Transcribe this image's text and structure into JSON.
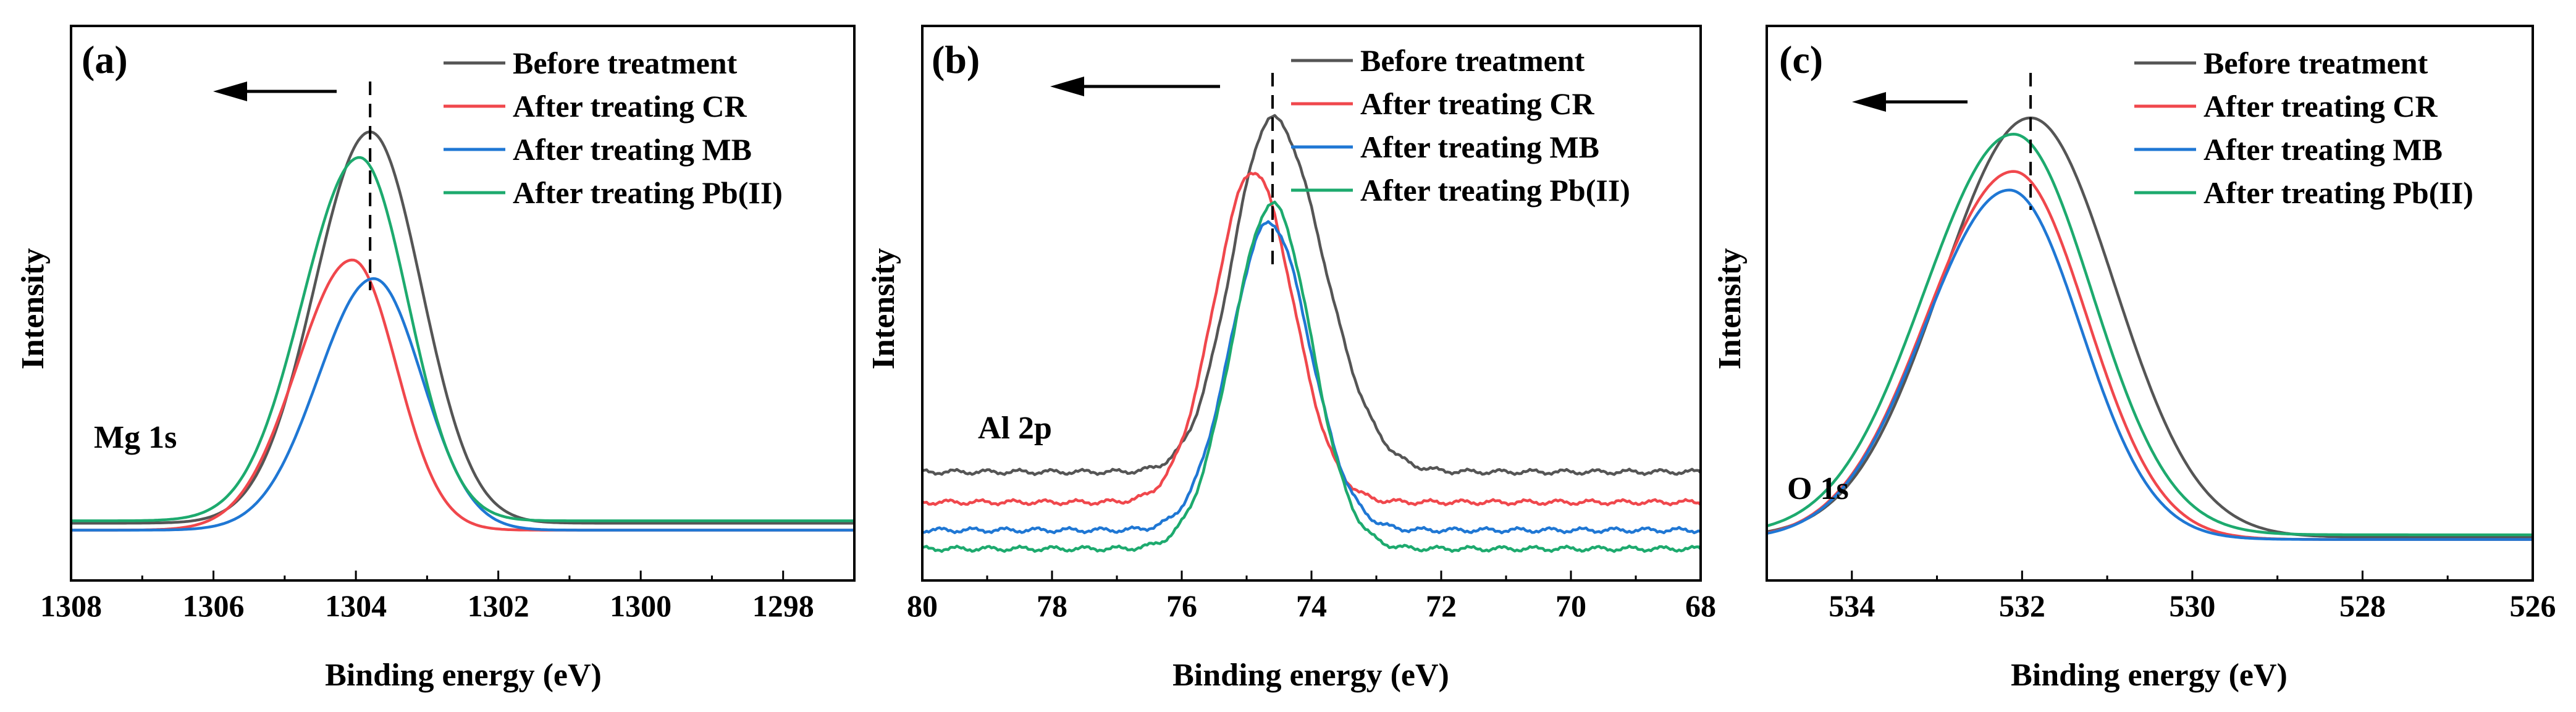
{
  "chart_data": [
    {
      "type": "line",
      "panel_label": "(a)",
      "annotation": "Mg 1s",
      "xlabel": "Binding energy (eV)",
      "ylabel": "Intensity",
      "xlim": [
        1308,
        1297
      ],
      "ylim": [
        0,
        1
      ],
      "x_ticks": [
        1308,
        1306,
        1304,
        1302,
        1300,
        1298
      ],
      "x_tick_labels": [
        "1308",
        "1306",
        "1304",
        "1302",
        "1300",
        "1298"
      ],
      "y_ticks_shown": false,
      "legend_position": "top-right",
      "dashed_marker_x": 1303.8,
      "arrow_direction": "left",
      "series": [
        {
          "name": "Before treatment",
          "color": "#555555",
          "baseline": 0.07,
          "peak": 1303.8,
          "amplitude": 0.84,
          "sigma_left": 0.78,
          "sigma_right": 0.72,
          "noise": 0.0
        },
        {
          "name": "After treating CR",
          "color": "#f0474c",
          "baseline": 0.055,
          "peak": 1304.05,
          "amplitude": 0.58,
          "sigma_left": 0.78,
          "sigma_right": 0.62,
          "noise": 0.0
        },
        {
          "name": "After treating MB",
          "color": "#1f77d4",
          "baseline": 0.055,
          "peak": 1303.75,
          "amplitude": 0.54,
          "sigma_left": 0.78,
          "sigma_right": 0.68,
          "noise": 0.0
        },
        {
          "name": "After treating Pb(II)",
          "color": "#1daa6e",
          "baseline": 0.075,
          "peak": 1303.95,
          "amplitude": 0.78,
          "sigma_left": 0.8,
          "sigma_right": 0.68,
          "noise": 0.0
        }
      ]
    },
    {
      "type": "line",
      "panel_label": "(b)",
      "annotation": "Al 2p",
      "xlabel": "Binding energy (eV)",
      "ylabel": "Intensity",
      "xlim": [
        80,
        68
      ],
      "ylim": [
        0,
        1
      ],
      "x_ticks": [
        80,
        78,
        76,
        74,
        72,
        70,
        68
      ],
      "x_tick_labels": [
        "80",
        "78",
        "76",
        "74",
        "72",
        "70",
        "68"
      ],
      "y_ticks_shown": false,
      "legend_position": "top-right",
      "dashed_marker_x": 74.6,
      "arrow_direction": "left",
      "series": [
        {
          "name": "Before treatment",
          "color": "#555555",
          "baseline": 0.18,
          "peak": 74.6,
          "amplitude": 0.76,
          "sigma_left": 0.62,
          "sigma_right": 0.78,
          "noise": 0.006
        },
        {
          "name": "After treating CR",
          "color": "#f0474c",
          "baseline": 0.115,
          "peak": 74.9,
          "amplitude": 0.71,
          "sigma_left": 0.6,
          "sigma_right": 0.62,
          "noise": 0.006
        },
        {
          "name": "After treating MB",
          "color": "#1f77d4",
          "baseline": 0.055,
          "peak": 74.65,
          "amplitude": 0.66,
          "sigma_left": 0.6,
          "sigma_right": 0.62,
          "noise": 0.006
        },
        {
          "name": "After treating Pb(II)",
          "color": "#1daa6e",
          "baseline": 0.015,
          "peak": 74.6,
          "amplitude": 0.74,
          "sigma_left": 0.62,
          "sigma_right": 0.6,
          "noise": 0.006
        }
      ]
    },
    {
      "type": "line",
      "panel_label": "(c)",
      "annotation": "O 1s",
      "xlabel": "Binding energy (eV)",
      "ylabel": "Intensity",
      "xlim": [
        535,
        526
      ],
      "ylim": [
        0,
        1
      ],
      "x_ticks": [
        534,
        532,
        530,
        528,
        526
      ],
      "x_tick_labels": [
        "534",
        "532",
        "530",
        "528",
        "526"
      ],
      "y_ticks_shown": false,
      "legend_position": "top-right",
      "dashed_marker_x": 531.9,
      "arrow_direction": "left",
      "series": [
        {
          "name": "Before treatment",
          "color": "#555555",
          "baseline": 0.04,
          "peak": 531.9,
          "amplitude": 0.9,
          "sigma_left": 1.05,
          "sigma_right": 0.98,
          "noise": 0.0
        },
        {
          "name": "After treating CR",
          "color": "#f0474c",
          "baseline": 0.035,
          "peak": 532.1,
          "amplitude": 0.79,
          "sigma_left": 1.02,
          "sigma_right": 0.86,
          "noise": 0.0
        },
        {
          "name": "After treating MB",
          "color": "#1f77d4",
          "baseline": 0.035,
          "peak": 532.15,
          "amplitude": 0.75,
          "sigma_left": 1.0,
          "sigma_right": 0.84,
          "noise": 0.0
        },
        {
          "name": "After treating Pb(II)",
          "color": "#1daa6e",
          "baseline": 0.045,
          "peak": 532.1,
          "amplitude": 0.86,
          "sigma_left": 1.05,
          "sigma_right": 0.92,
          "noise": 0.0
        }
      ]
    }
  ]
}
